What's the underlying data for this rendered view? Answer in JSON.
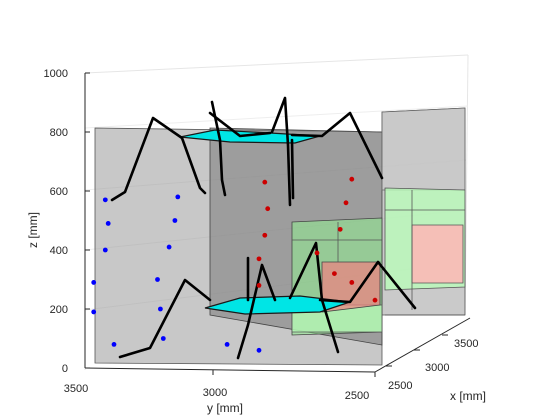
{
  "chart_data": {
    "type": "scatter",
    "projection": "3d",
    "xlabel": "x [mm]",
    "ylabel": "y [mm]",
    "zlabel": "z [mm]",
    "xlim": [
      2400,
      3700
    ],
    "ylim": [
      2500,
      3500
    ],
    "zlim": [
      0,
      1000
    ],
    "x_ticks": [
      "2500",
      "3000",
      "3500"
    ],
    "y_ticks": [
      "3500",
      "3000",
      "2500"
    ],
    "z_ticks": [
      "0",
      "200",
      "400",
      "600",
      "800",
      "1000"
    ],
    "grid": true,
    "colors": {
      "blue_points": "#0000ff",
      "red_points": "#cc0000",
      "platform": "#00e5e5",
      "legs": "#000000",
      "workspace_box": "#808080",
      "green_region": "#90ee90",
      "red_region": "#f08080"
    },
    "series": [
      {
        "marker_color": "blue",
        "points": [
          {
            "y": 3430,
            "z": 570
          },
          {
            "y": 3420,
            "z": 490
          },
          {
            "y": 3430,
            "z": 400
          },
          {
            "y": 3470,
            "z": 290
          },
          {
            "y": 3470,
            "z": 190
          },
          {
            "y": 3400,
            "z": 80
          },
          {
            "y": 3180,
            "z": 580
          },
          {
            "y": 3190,
            "z": 500
          },
          {
            "y": 3210,
            "z": 410
          },
          {
            "y": 3250,
            "z": 300
          },
          {
            "y": 3240,
            "z": 200
          },
          {
            "y": 3230,
            "z": 100
          },
          {
            "y": 3010,
            "z": 80
          },
          {
            "y": 2900,
            "z": 60
          }
        ]
      },
      {
        "marker_color": "red",
        "points": [
          {
            "y": 2880,
            "z": 630
          },
          {
            "y": 2870,
            "z": 540
          },
          {
            "y": 2880,
            "z": 450
          },
          {
            "y": 2900,
            "z": 370
          },
          {
            "y": 2900,
            "z": 280
          },
          {
            "y": 2580,
            "z": 640
          },
          {
            "y": 2600,
            "z": 560
          },
          {
            "y": 2620,
            "z": 470
          },
          {
            "y": 2700,
            "z": 390
          },
          {
            "y": 2640,
            "z": 320
          },
          {
            "y": 2580,
            "z": 290
          },
          {
            "y": 2500,
            "z": 230
          }
        ]
      }
    ]
  }
}
